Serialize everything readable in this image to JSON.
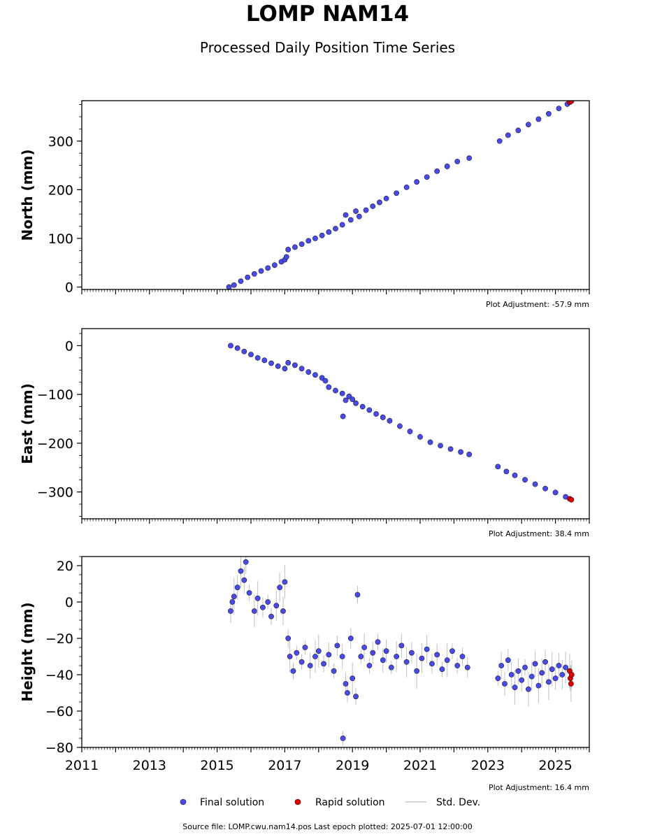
{
  "title": "LOMP NAM14",
  "subtitle": "Processed Daily Position Time Series",
  "source_note": "Source file: LOMP.cwu.nam14.pos  Last epoch plotted: 2025-07-01 12:00:00",
  "legend": {
    "placement": "bottom-center",
    "final_label": "Final solution",
    "rapid_label": "Rapid solution",
    "stddev_label": "Std. Dev."
  },
  "colors": {
    "final": "#4a4ae8",
    "rapid": "#e00000",
    "stddev": "#b0b0b0",
    "marker_edge": "#1a1a3a"
  },
  "chart_data": [
    {
      "type": "scatter",
      "component": "north",
      "ylabel": "North (mm)",
      "adjustment": "Plot Adjustment: -57.9 mm",
      "xlim": [
        2011.0,
        2026.0
      ],
      "ylim": [
        -5,
        383
      ],
      "yticks": [
        0,
        100,
        200,
        300
      ],
      "yticklabels": [
        "0",
        "100",
        "200",
        "300"
      ],
      "xticks": [
        2011,
        2013,
        2015,
        2017,
        2019,
        2021,
        2023,
        2025
      ],
      "xticklabels": [],
      "series": [
        {
          "kind": "final",
          "points": [
            [
              2015.35,
              0
            ],
            [
              2015.5,
              4
            ],
            [
              2015.7,
              12
            ],
            [
              2015.9,
              20
            ],
            [
              2016.1,
              27
            ],
            [
              2016.3,
              33
            ],
            [
              2016.5,
              39
            ],
            [
              2016.7,
              45
            ],
            [
              2016.9,
              52
            ],
            [
              2017.0,
              56
            ],
            [
              2017.05,
              62
            ],
            [
              2017.1,
              77
            ],
            [
              2017.3,
              82
            ],
            [
              2017.5,
              88
            ],
            [
              2017.7,
              95
            ],
            [
              2017.9,
              100
            ],
            [
              2018.1,
              106
            ],
            [
              2018.3,
              113
            ],
            [
              2018.5,
              120
            ],
            [
              2018.7,
              128
            ],
            [
              2018.8,
              148
            ],
            [
              2018.95,
              138
            ],
            [
              2019.1,
              156
            ],
            [
              2019.2,
              145
            ],
            [
              2019.4,
              158
            ],
            [
              2019.6,
              166
            ],
            [
              2019.8,
              174
            ],
            [
              2020.0,
              182
            ],
            [
              2020.3,
              193
            ],
            [
              2020.6,
              205
            ],
            [
              2020.9,
              216
            ],
            [
              2021.2,
              226
            ],
            [
              2021.5,
              238
            ],
            [
              2021.8,
              248
            ],
            [
              2022.1,
              258
            ],
            [
              2022.45,
              265
            ],
            [
              2023.35,
              300
            ],
            [
              2023.6,
              312
            ],
            [
              2023.9,
              322
            ],
            [
              2024.2,
              334
            ],
            [
              2024.5,
              345
            ],
            [
              2024.8,
              356
            ],
            [
              2025.1,
              367
            ],
            [
              2025.35,
              376
            ]
          ]
        },
        {
          "kind": "rapid",
          "points": [
            [
              2025.42,
              380
            ],
            [
              2025.47,
              382
            ]
          ]
        }
      ]
    },
    {
      "type": "scatter",
      "component": "east",
      "ylabel": "East (mm)",
      "adjustment": "Plot Adjustment: 38.4 mm",
      "xlim": [
        2011.0,
        2026.0
      ],
      "ylim": [
        -355,
        35
      ],
      "yticks": [
        0,
        -100,
        -200,
        -300
      ],
      "yticklabels": [
        "0",
        "−100",
        "−200",
        "−300"
      ],
      "xticks": [
        2011,
        2013,
        2015,
        2017,
        2019,
        2021,
        2023,
        2025
      ],
      "xticklabels": [],
      "series": [
        {
          "kind": "final",
          "points": [
            [
              2015.4,
              0
            ],
            [
              2015.6,
              -5
            ],
            [
              2015.8,
              -12
            ],
            [
              2016.0,
              -18
            ],
            [
              2016.2,
              -25
            ],
            [
              2016.4,
              -30
            ],
            [
              2016.6,
              -36
            ],
            [
              2016.8,
              -42
            ],
            [
              2017.0,
              -47
            ],
            [
              2017.1,
              -35
            ],
            [
              2017.3,
              -40
            ],
            [
              2017.5,
              -47
            ],
            [
              2017.7,
              -54
            ],
            [
              2017.9,
              -60
            ],
            [
              2018.1,
              -66
            ],
            [
              2018.2,
              -72
            ],
            [
              2018.3,
              -85
            ],
            [
              2018.5,
              -92
            ],
            [
              2018.7,
              -98
            ],
            [
              2018.72,
              -145
            ],
            [
              2018.8,
              -112
            ],
            [
              2018.9,
              -104
            ],
            [
              2019.0,
              -110
            ],
            [
              2019.1,
              -118
            ],
            [
              2019.3,
              -125
            ],
            [
              2019.5,
              -132
            ],
            [
              2019.7,
              -140
            ],
            [
              2019.9,
              -147
            ],
            [
              2020.1,
              -154
            ],
            [
              2020.4,
              -165
            ],
            [
              2020.7,
              -176
            ],
            [
              2021.0,
              -187
            ],
            [
              2021.3,
              -198
            ],
            [
              2021.6,
              -205
            ],
            [
              2021.9,
              -212
            ],
            [
              2022.2,
              -218
            ],
            [
              2022.45,
              -223
            ],
            [
              2023.3,
              -248
            ],
            [
              2023.55,
              -258
            ],
            [
              2023.8,
              -266
            ],
            [
              2024.1,
              -275
            ],
            [
              2024.4,
              -284
            ],
            [
              2024.7,
              -293
            ],
            [
              2025.0,
              -301
            ],
            [
              2025.3,
              -310
            ]
          ]
        },
        {
          "kind": "rapid",
          "points": [
            [
              2025.42,
              -314
            ],
            [
              2025.47,
              -316
            ]
          ]
        }
      ]
    },
    {
      "type": "scatter",
      "component": "height",
      "ylabel": "Height (mm)",
      "adjustment": "Plot Adjustment: 16.4 mm",
      "xlim": [
        2011.0,
        2026.0
      ],
      "ylim": [
        -80,
        25
      ],
      "yticks": [
        20,
        0,
        -20,
        -40,
        -60,
        -80
      ],
      "yticklabels": [
        "20",
        "0",
        "−20",
        "−40",
        "−60",
        "−80"
      ],
      "xticks": [
        2011,
        2013,
        2015,
        2017,
        2019,
        2021,
        2023,
        2025
      ],
      "xticklabels": [
        "2011",
        "2013",
        "2015",
        "2017",
        "2019",
        "2021",
        "2023",
        "2025"
      ],
      "series": [
        {
          "kind": "final",
          "points": [
            [
              2015.4,
              -5
            ],
            [
              2015.45,
              0
            ],
            [
              2015.5,
              3
            ],
            [
              2015.6,
              8
            ],
            [
              2015.7,
              17
            ],
            [
              2015.8,
              12
            ],
            [
              2015.85,
              22
            ],
            [
              2015.95,
              5
            ],
            [
              2016.1,
              -5
            ],
            [
              2016.2,
              2
            ],
            [
              2016.35,
              -3
            ],
            [
              2016.5,
              0
            ],
            [
              2016.6,
              -8
            ],
            [
              2016.75,
              -2
            ],
            [
              2016.85,
              8
            ],
            [
              2016.95,
              -5
            ],
            [
              2017.0,
              11
            ],
            [
              2017.1,
              -20
            ],
            [
              2017.15,
              -30
            ],
            [
              2017.25,
              -38
            ],
            [
              2017.35,
              -28
            ],
            [
              2017.5,
              -33
            ],
            [
              2017.6,
              -25
            ],
            [
              2017.75,
              -35
            ],
            [
              2017.9,
              -30
            ],
            [
              2018.0,
              -27
            ],
            [
              2018.15,
              -34
            ],
            [
              2018.3,
              -29
            ],
            [
              2018.45,
              -38
            ],
            [
              2018.55,
              -24
            ],
            [
              2018.7,
              -30
            ],
            [
              2018.72,
              -75
            ],
            [
              2018.8,
              -45
            ],
            [
              2018.85,
              -50
            ],
            [
              2018.95,
              -20
            ],
            [
              2019.0,
              -42
            ],
            [
              2019.1,
              -52
            ],
            [
              2019.15,
              4
            ],
            [
              2019.25,
              -30
            ],
            [
              2019.35,
              -25
            ],
            [
              2019.5,
              -35
            ],
            [
              2019.6,
              -28
            ],
            [
              2019.75,
              -22
            ],
            [
              2019.9,
              -32
            ],
            [
              2020.0,
              -27
            ],
            [
              2020.15,
              -36
            ],
            [
              2020.3,
              -30
            ],
            [
              2020.45,
              -24
            ],
            [
              2020.6,
              -33
            ],
            [
              2020.75,
              -28
            ],
            [
              2020.9,
              -38
            ],
            [
              2021.05,
              -31
            ],
            [
              2021.2,
              -26
            ],
            [
              2021.35,
              -34
            ],
            [
              2021.5,
              -29
            ],
            [
              2021.65,
              -37
            ],
            [
              2021.8,
              -32
            ],
            [
              2021.95,
              -27
            ],
            [
              2022.1,
              -35
            ],
            [
              2022.25,
              -30
            ],
            [
              2022.4,
              -36
            ],
            [
              2023.3,
              -42
            ],
            [
              2023.4,
              -35
            ],
            [
              2023.5,
              -45
            ],
            [
              2023.6,
              -32
            ],
            [
              2023.7,
              -40
            ],
            [
              2023.8,
              -47
            ],
            [
              2023.9,
              -38
            ],
            [
              2024.0,
              -43
            ],
            [
              2024.1,
              -36
            ],
            [
              2024.2,
              -48
            ],
            [
              2024.3,
              -41
            ],
            [
              2024.4,
              -34
            ],
            [
              2024.5,
              -46
            ],
            [
              2024.6,
              -39
            ],
            [
              2024.7,
              -33
            ],
            [
              2024.8,
              -44
            ],
            [
              2024.9,
              -37
            ],
            [
              2025.0,
              -42
            ],
            [
              2025.1,
              -35
            ],
            [
              2025.2,
              -40
            ],
            [
              2025.3,
              -36
            ]
          ]
        },
        {
          "kind": "rapid",
          "points": [
            [
              2025.42,
              -38
            ],
            [
              2025.44,
              -42
            ],
            [
              2025.46,
              -45
            ],
            [
              2025.48,
              -40
            ]
          ]
        }
      ]
    }
  ]
}
